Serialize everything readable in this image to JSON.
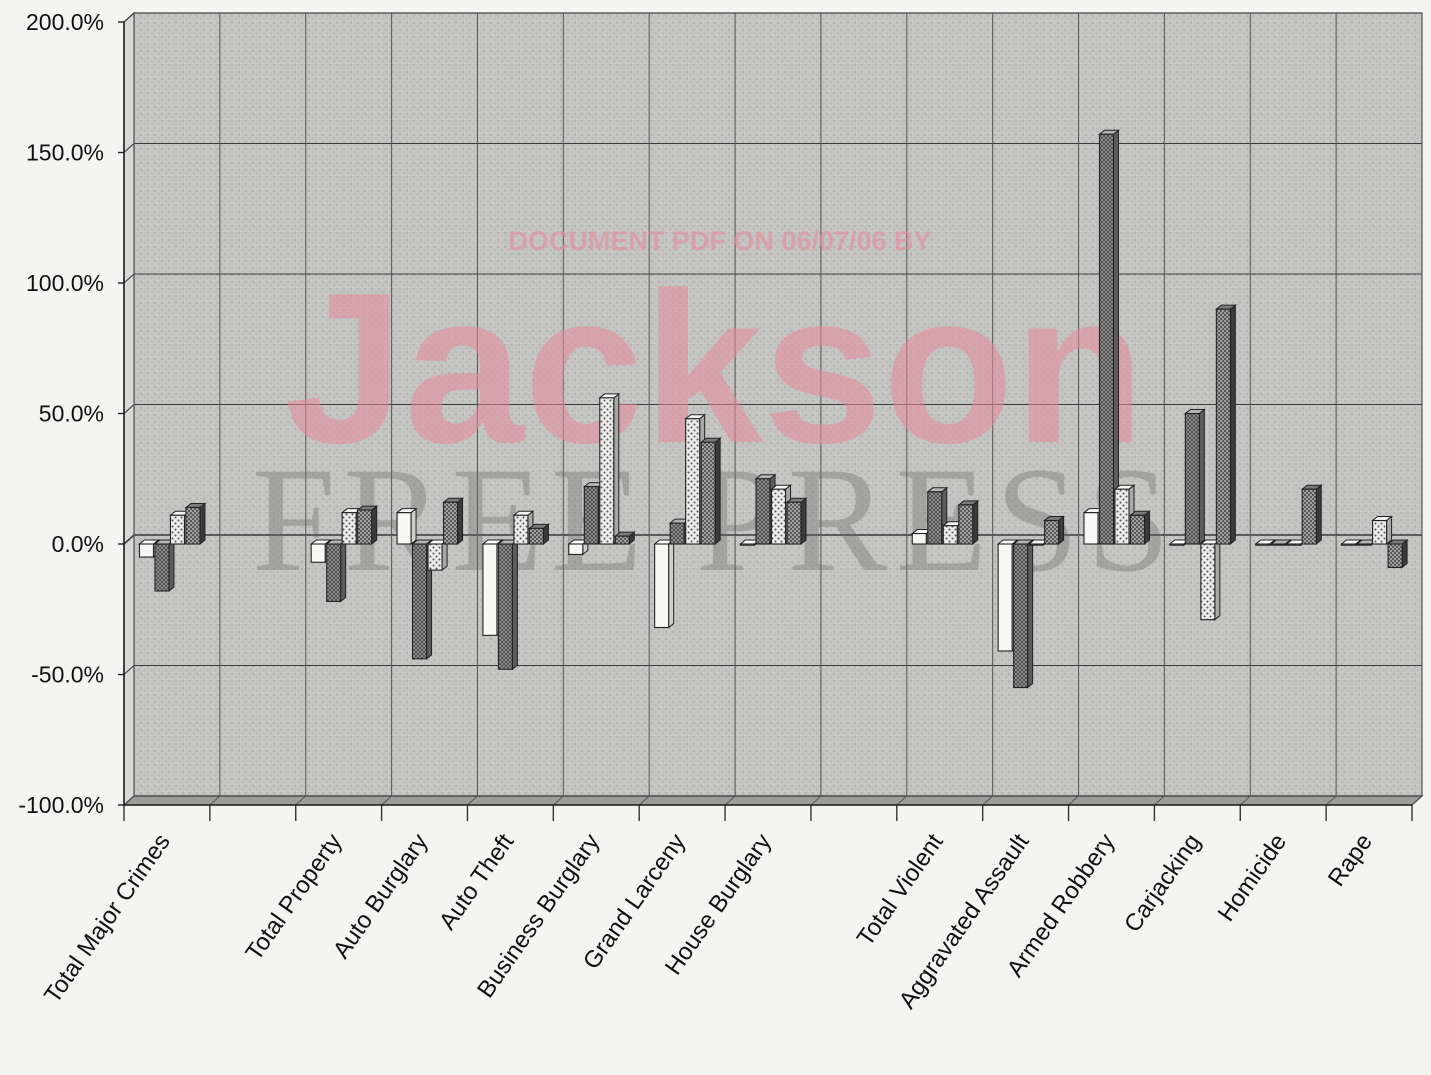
{
  "chart_data": {
    "type": "bar",
    "bar_style": "3d-clustered",
    "categories": [
      "Total Major Crimes",
      "",
      "Total Property",
      "Auto Burglary",
      "Auto Theft",
      "Business Burglary",
      "Grand Larceny",
      "House Burglary",
      "",
      "Total Violent",
      "Aggravated Assault",
      "Armed Robbery",
      "Carjacking",
      "Homicide",
      "Rape"
    ],
    "series": [
      {
        "values": [
          -5,
          null,
          -7,
          12,
          -35,
          -4,
          -32,
          0,
          null,
          4,
          -41,
          12,
          0,
          0,
          0
        ]
      },
      {
        "values": [
          -18,
          null,
          -22,
          -44,
          -48,
          22,
          8,
          25,
          null,
          20,
          -55,
          157,
          50,
          0,
          0
        ]
      },
      {
        "values": [
          11,
          null,
          12,
          -10,
          11,
          56,
          48,
          21,
          null,
          7,
          0,
          21,
          -29,
          0,
          9
        ]
      },
      {
        "values": [
          14,
          null,
          13,
          16,
          6,
          3,
          39,
          16,
          null,
          15,
          9,
          11,
          90,
          21,
          -9
        ]
      }
    ],
    "yticks": [
      "200.0%",
      "150.0%",
      "100.0%",
      "50.0%",
      "0.0%",
      "-50.0%",
      "-100.0%"
    ],
    "ylim": [
      -100,
      200
    ],
    "grid": true,
    "legend": "none"
  },
  "watermark": {
    "line1": "DOCUMENT PDF ON 06/07/06 BY",
    "line2": "Jackson",
    "line3": "FREE PRESS"
  },
  "colors": {
    "series_fill": [
      "#f8f8f6",
      "#8c8c8c",
      "#e6e6e4",
      "#595959"
    ],
    "plot_background": "#bdbdbb",
    "watermark_pink": "#e88a9a"
  }
}
